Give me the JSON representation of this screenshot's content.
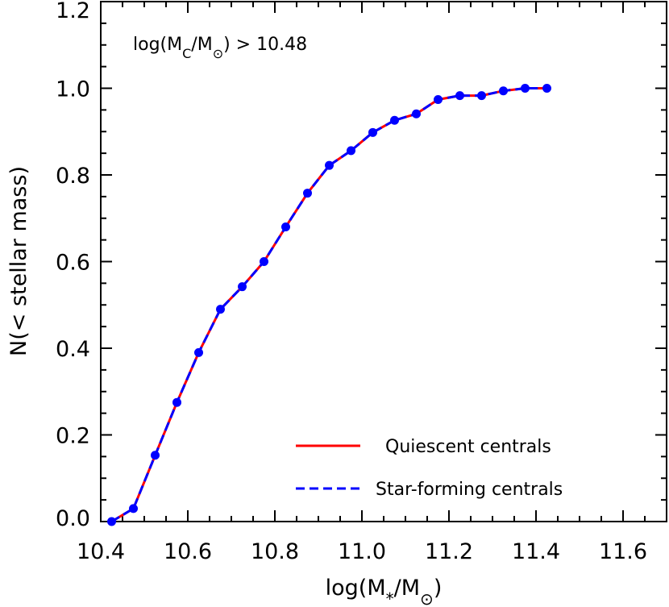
{
  "chart_data": {
    "type": "line",
    "xlim": [
      10.4,
      11.7
    ],
    "ylim": [
      0.0,
      1.2
    ],
    "xticks": [
      10.4,
      10.6,
      10.8,
      11.0,
      11.2,
      11.4,
      11.6
    ],
    "yticks": [
      0.0,
      0.2,
      0.4,
      0.6,
      0.8,
      1.0,
      1.2
    ],
    "xtick_labels": [
      "10.4",
      "10.6",
      "10.8",
      "11.0",
      "11.2",
      "11.4",
      "11.6"
    ],
    "ytick_labels": [
      "0.0",
      "0.2",
      "0.4",
      "0.6",
      "0.8",
      "1.0",
      "1.2"
    ],
    "xlabel": {
      "pre": "log(M",
      "sub": "*",
      "post": "/M",
      "sym": "⊙",
      "end": ")"
    },
    "ylabel": "N(< stellar mass)",
    "annotation": {
      "pre": "log(M",
      "sub": "C",
      "post": "/M",
      "sym": "⊙",
      "end": ") > 10.48"
    },
    "grid": false,
    "legend_position": "bottom-right",
    "x": [
      10.425,
      10.475,
      10.525,
      10.575,
      10.625,
      10.675,
      10.725,
      10.775,
      10.825,
      10.875,
      10.925,
      10.975,
      11.025,
      11.075,
      11.125,
      11.175,
      11.225,
      11.275,
      11.325,
      11.375,
      11.425
    ],
    "series": [
      {
        "name": "Quiescent centrals",
        "style": "solid",
        "color": "#ff0000",
        "values": [
          0.0,
          0.03,
          0.153,
          0.275,
          0.39,
          0.49,
          0.542,
          0.6,
          0.68,
          0.758,
          0.822,
          0.856,
          0.898,
          0.926,
          0.941,
          0.974,
          0.983,
          0.983,
          0.994,
          1.0,
          1.0
        ]
      },
      {
        "name": "Star-forming centrals",
        "style": "dashed",
        "color": "#0000ff",
        "values": [
          0.0,
          0.03,
          0.153,
          0.275,
          0.39,
          0.49,
          0.542,
          0.6,
          0.68,
          0.758,
          0.822,
          0.856,
          0.898,
          0.926,
          0.941,
          0.974,
          0.983,
          0.983,
          0.994,
          1.0,
          1.0
        ]
      }
    ],
    "marker_color": "#0000ff"
  }
}
